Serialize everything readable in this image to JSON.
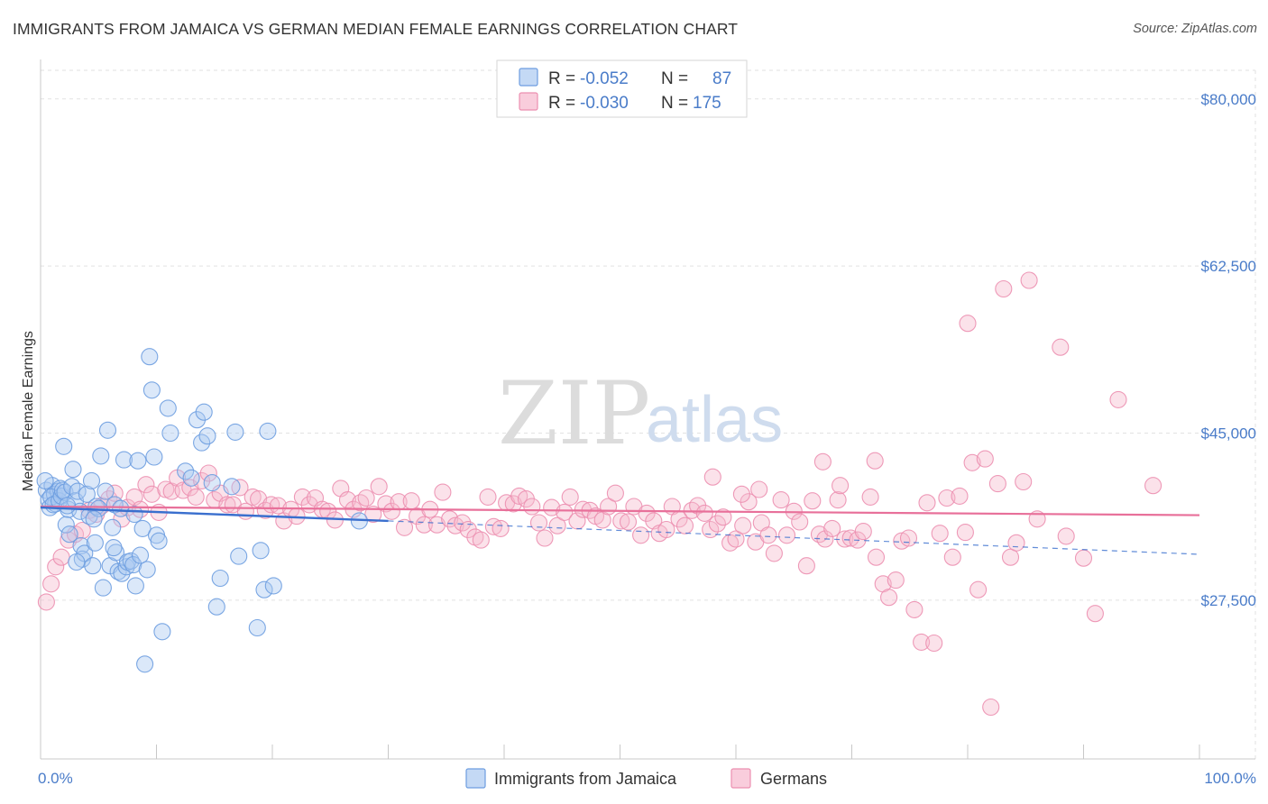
{
  "header": {
    "title": "IMMIGRANTS FROM JAMAICA VS GERMAN MEDIAN FEMALE EARNINGS CORRELATION CHART",
    "source": "Source: ZipAtlas.com"
  },
  "watermark": {
    "zip": "ZIP",
    "atlas": "atlas"
  },
  "colors": {
    "blue_fill": "#a9c8f0",
    "blue_stroke": "#6d9de0",
    "blue_line": "#3a6fce",
    "pink_fill": "#f6b9cd",
    "pink_stroke": "#ec8fb0",
    "pink_line": "#e8709a",
    "grid": "#e2e2e2",
    "tick_label": "#4a7cc9"
  },
  "legend": {
    "rows": [
      {
        "r_label": "R =",
        "r_value": "-0.052",
        "n_label": "N =",
        "n_value": "87"
      },
      {
        "r_label": "R =",
        "r_value": "-0.030",
        "n_label": "N =",
        "n_value": "175"
      }
    ]
  },
  "bottom_legend": [
    "Immigrants from Jamaica",
    "Germans"
  ],
  "chart_data": {
    "type": "scatter",
    "title": "IMMIGRANTS FROM JAMAICA VS GERMAN MEDIAN FEMALE EARNINGS CORRELATION CHART",
    "xlabel": "",
    "ylabel": "Median Female Earnings",
    "xlim": [
      0,
      100
    ],
    "ylim": [
      12000,
      83000
    ],
    "x_tick_labels": [
      "0.0%",
      "100.0%"
    ],
    "y_ticks": [
      27500,
      45000,
      62500,
      80000
    ],
    "y_tick_labels": [
      "$27,500",
      "$45,000",
      "$62,500",
      "$80,000"
    ],
    "grid": true,
    "legend_position": "top-center",
    "series": [
      {
        "name": "Immigrants from Jamaica",
        "r": -0.052,
        "n": 87,
        "trend_solid": [
          [
            0,
            37200
          ],
          [
            30,
            35800
          ]
        ],
        "trend_dashed": [
          [
            30,
            35800
          ],
          [
            100,
            32300
          ]
        ],
        "points": [
          [
            0.5,
            39000
          ],
          [
            0.7,
            38000
          ],
          [
            0.8,
            37200
          ],
          [
            1.0,
            39500
          ],
          [
            1.2,
            38600
          ],
          [
            1.3,
            37600
          ],
          [
            1.5,
            38900
          ],
          [
            1.7,
            39200
          ],
          [
            0.4,
            40000
          ],
          [
            0.9,
            38300
          ],
          [
            1.1,
            37500
          ],
          [
            1.6,
            37900
          ],
          [
            1.8,
            38400
          ],
          [
            1.9,
            39000
          ],
          [
            2.1,
            38800
          ],
          [
            2.4,
            37000
          ],
          [
            2.0,
            43600
          ],
          [
            2.2,
            35400
          ],
          [
            2.5,
            34400
          ],
          [
            2.7,
            39400
          ],
          [
            2.8,
            41200
          ],
          [
            3.0,
            37900
          ],
          [
            3.2,
            38900
          ],
          [
            3.4,
            36800
          ],
          [
            3.5,
            33200
          ],
          [
            3.6,
            31800
          ],
          [
            3.8,
            32400
          ],
          [
            4.0,
            38600
          ],
          [
            4.2,
            36300
          ],
          [
            4.4,
            40000
          ],
          [
            4.5,
            31100
          ],
          [
            4.7,
            33500
          ],
          [
            4.8,
            37300
          ],
          [
            5.0,
            37100
          ],
          [
            5.2,
            42600
          ],
          [
            5.4,
            28800
          ],
          [
            5.6,
            38900
          ],
          [
            5.8,
            45300
          ],
          [
            6.0,
            31100
          ],
          [
            6.2,
            35100
          ],
          [
            6.4,
            37500
          ],
          [
            6.5,
            32500
          ],
          [
            6.7,
            30500
          ],
          [
            6.9,
            37100
          ],
          [
            7.0,
            30300
          ],
          [
            7.2,
            42200
          ],
          [
            7.4,
            31000
          ],
          [
            7.5,
            31500
          ],
          [
            7.8,
            31600
          ],
          [
            8.0,
            31200
          ],
          [
            8.2,
            29000
          ],
          [
            8.4,
            42100
          ],
          [
            8.6,
            32200
          ],
          [
            8.8,
            35000
          ],
          [
            9.0,
            20800
          ],
          [
            9.2,
            30700
          ],
          [
            9.4,
            53000
          ],
          [
            9.6,
            49500
          ],
          [
            9.8,
            42500
          ],
          [
            10.0,
            34300
          ],
          [
            10.2,
            33700
          ],
          [
            10.5,
            24200
          ],
          [
            11.0,
            47600
          ],
          [
            11.2,
            45000
          ],
          [
            12.5,
            41000
          ],
          [
            13.0,
            40300
          ],
          [
            13.5,
            46400
          ],
          [
            13.9,
            44000
          ],
          [
            14.1,
            47200
          ],
          [
            14.4,
            44700
          ],
          [
            14.8,
            39800
          ],
          [
            15.2,
            26800
          ],
          [
            15.5,
            29800
          ],
          [
            16.5,
            39400
          ],
          [
            16.8,
            45100
          ],
          [
            17.1,
            32100
          ],
          [
            18.7,
            24600
          ],
          [
            19.0,
            32700
          ],
          [
            19.3,
            28600
          ],
          [
            19.6,
            45200
          ],
          [
            20.1,
            29000
          ],
          [
            27.5,
            35800
          ],
          [
            8.1,
            36500
          ],
          [
            6.3,
            33000
          ],
          [
            3.1,
            31500
          ],
          [
            4.6,
            36000
          ],
          [
            2.3,
            37400
          ]
        ]
      },
      {
        "name": "Germans",
        "r": -0.03,
        "n": 175,
        "trend_solid": [
          [
            0,
            37300
          ],
          [
            100,
            36400
          ]
        ],
        "points": [
          [
            0.5,
            27300
          ],
          [
            0.9,
            29200
          ],
          [
            1.3,
            31000
          ],
          [
            1.8,
            32000
          ],
          [
            2.4,
            33800
          ],
          [
            3.0,
            34400
          ],
          [
            3.6,
            34800
          ],
          [
            4.2,
            36900
          ],
          [
            4.8,
            36500
          ],
          [
            5.3,
            37400
          ],
          [
            5.9,
            38100
          ],
          [
            6.4,
            38700
          ],
          [
            7.0,
            36000
          ],
          [
            7.5,
            37200
          ],
          [
            8.1,
            38300
          ],
          [
            8.6,
            37000
          ],
          [
            9.1,
            39600
          ],
          [
            9.6,
            38600
          ],
          [
            10.2,
            36700
          ],
          [
            10.8,
            39100
          ],
          [
            11.3,
            38900
          ],
          [
            11.8,
            40300
          ],
          [
            12.3,
            39000
          ],
          [
            12.9,
            39300
          ],
          [
            13.4,
            38300
          ],
          [
            13.9,
            40000
          ],
          [
            14.5,
            40800
          ],
          [
            15.0,
            38000
          ],
          [
            15.5,
            38700
          ],
          [
            16.1,
            37500
          ],
          [
            16.6,
            37500
          ],
          [
            17.2,
            39300
          ],
          [
            17.7,
            36800
          ],
          [
            18.3,
            38300
          ],
          [
            18.8,
            38100
          ],
          [
            19.4,
            36900
          ],
          [
            19.9,
            37500
          ],
          [
            20.5,
            37400
          ],
          [
            21.0,
            35800
          ],
          [
            21.6,
            37000
          ],
          [
            22.1,
            36300
          ],
          [
            22.6,
            38300
          ],
          [
            23.2,
            37500
          ],
          [
            23.7,
            38200
          ],
          [
            24.3,
            37000
          ],
          [
            24.8,
            36800
          ],
          [
            25.4,
            35900
          ],
          [
            25.9,
            39200
          ],
          [
            26.5,
            38000
          ],
          [
            27.0,
            37000
          ],
          [
            27.6,
            37700
          ],
          [
            28.1,
            38200
          ],
          [
            28.7,
            36500
          ],
          [
            29.2,
            39400
          ],
          [
            29.8,
            37600
          ],
          [
            30.3,
            36800
          ],
          [
            30.9,
            37800
          ],
          [
            31.4,
            35100
          ],
          [
            32.0,
            37900
          ],
          [
            32.5,
            36300
          ],
          [
            33.1,
            35400
          ],
          [
            33.6,
            37000
          ],
          [
            34.2,
            35400
          ],
          [
            34.7,
            38800
          ],
          [
            35.3,
            36000
          ],
          [
            35.8,
            35300
          ],
          [
            36.4,
            35600
          ],
          [
            36.9,
            34900
          ],
          [
            37.5,
            34100
          ],
          [
            38.0,
            33800
          ],
          [
            38.6,
            38300
          ],
          [
            39.1,
            35200
          ],
          [
            39.7,
            35000
          ],
          [
            40.2,
            37700
          ],
          [
            40.8,
            37600
          ],
          [
            41.3,
            38400
          ],
          [
            41.9,
            38100
          ],
          [
            42.4,
            37300
          ],
          [
            43.0,
            35600
          ],
          [
            43.5,
            34000
          ],
          [
            44.1,
            37200
          ],
          [
            44.6,
            35300
          ],
          [
            45.2,
            36700
          ],
          [
            45.7,
            38300
          ],
          [
            46.3,
            35800
          ],
          [
            46.8,
            37000
          ],
          [
            47.4,
            36900
          ],
          [
            47.9,
            36300
          ],
          [
            48.5,
            35900
          ],
          [
            49.0,
            37300
          ],
          [
            49.6,
            38700
          ],
          [
            50.1,
            35800
          ],
          [
            50.7,
            35700
          ],
          [
            51.2,
            37300
          ],
          [
            51.8,
            34300
          ],
          [
            52.3,
            36600
          ],
          [
            52.9,
            35800
          ],
          [
            53.4,
            34500
          ],
          [
            54.0,
            34900
          ],
          [
            54.5,
            37300
          ],
          [
            55.1,
            36000
          ],
          [
            55.6,
            35300
          ],
          [
            56.2,
            36900
          ],
          [
            56.7,
            37400
          ],
          [
            57.3,
            36600
          ],
          [
            57.8,
            34900
          ],
          [
            58.4,
            35500
          ],
          [
            58.9,
            36200
          ],
          [
            59.5,
            33500
          ],
          [
            60.0,
            33900
          ],
          [
            60.6,
            35300
          ],
          [
            61.1,
            37800
          ],
          [
            61.7,
            33600
          ],
          [
            62.2,
            35600
          ],
          [
            62.8,
            34300
          ],
          [
            63.3,
            32400
          ],
          [
            63.9,
            38000
          ],
          [
            64.4,
            34300
          ],
          [
            65.0,
            36800
          ],
          [
            65.5,
            35700
          ],
          [
            66.1,
            31100
          ],
          [
            66.6,
            37900
          ],
          [
            67.2,
            34400
          ],
          [
            67.7,
            33900
          ],
          [
            68.3,
            35000
          ],
          [
            68.8,
            38000
          ],
          [
            69.4,
            33900
          ],
          [
            69.9,
            34000
          ],
          [
            70.5,
            33800
          ],
          [
            71.0,
            34700
          ],
          [
            71.6,
            38300
          ],
          [
            72.1,
            32000
          ],
          [
            72.7,
            29200
          ],
          [
            73.2,
            27800
          ],
          [
            73.8,
            29600
          ],
          [
            74.3,
            33700
          ],
          [
            74.9,
            34000
          ],
          [
            75.4,
            26500
          ],
          [
            76.0,
            23100
          ],
          [
            76.5,
            37700
          ],
          [
            77.1,
            23000
          ],
          [
            77.6,
            34500
          ],
          [
            78.2,
            38200
          ],
          [
            78.7,
            32000
          ],
          [
            79.3,
            38400
          ],
          [
            79.8,
            34600
          ],
          [
            80.4,
            41900
          ],
          [
            80.9,
            28600
          ],
          [
            81.5,
            42300
          ],
          [
            82.0,
            16300
          ],
          [
            82.6,
            39700
          ],
          [
            83.1,
            60100
          ],
          [
            83.7,
            32000
          ],
          [
            84.2,
            33500
          ],
          [
            84.8,
            39900
          ],
          [
            85.3,
            61000
          ],
          [
            86.0,
            36000
          ],
          [
            88.0,
            54000
          ],
          [
            88.5,
            34200
          ],
          [
            90.0,
            31900
          ],
          [
            91.0,
            26100
          ],
          [
            93.0,
            48500
          ],
          [
            96.0,
            39500
          ],
          [
            72.0,
            42100
          ],
          [
            80.0,
            56500
          ],
          [
            58.0,
            40400
          ],
          [
            60.5,
            38600
          ],
          [
            62.0,
            39100
          ],
          [
            67.5,
            42000
          ],
          [
            69.0,
            39500
          ]
        ]
      }
    ]
  }
}
